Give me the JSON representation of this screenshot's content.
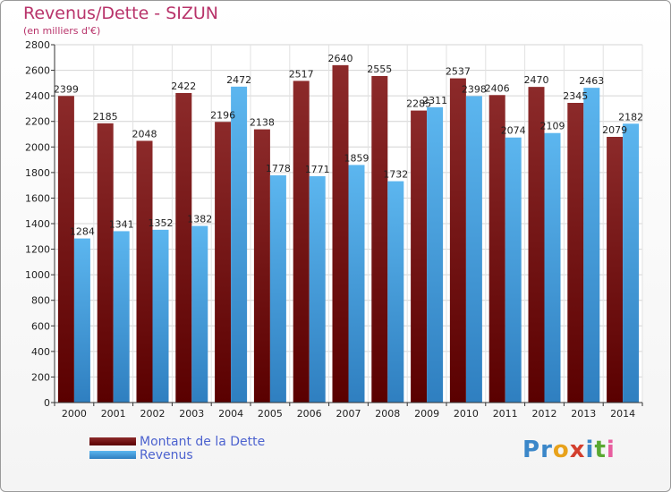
{
  "title": "Revenus/Dette - SIZUN",
  "subtitle": "(en milliers d'€)",
  "legend": {
    "dette": "Montant de la Dette",
    "revenus": "Revenus"
  },
  "logo": {
    "text": "Proxiti",
    "colors": [
      "#3b87c9",
      "#3b87c9",
      "#e8a21b",
      "#d33f2e",
      "#3b87c9",
      "#5aa832",
      "#e85d9f"
    ]
  },
  "colors": {
    "dette": "#7a1414",
    "revenus": "#4aa6e6",
    "title": "#b8336a",
    "legend_text": "#4c62cf"
  },
  "chart_data": {
    "type": "bar",
    "categories": [
      "2000",
      "2001",
      "2002",
      "2003",
      "2004",
      "2005",
      "2006",
      "2007",
      "2008",
      "2009",
      "2010",
      "2011",
      "2012",
      "2013",
      "2014"
    ],
    "series": [
      {
        "name": "Montant de la Dette",
        "values": [
          2399,
          2185,
          2048,
          2422,
          2196,
          2138,
          2517,
          2640,
          2555,
          2285,
          2537,
          2406,
          2470,
          2345,
          2079
        ]
      },
      {
        "name": "Revenus",
        "values": [
          1284,
          1341,
          1352,
          1382,
          2472,
          1778,
          1771,
          1859,
          1732,
          2311,
          2398,
          2074,
          2109,
          2463,
          2182
        ]
      }
    ],
    "ylim": [
      0,
      2800
    ],
    "yticks": [
      0,
      200,
      400,
      600,
      800,
      1000,
      1200,
      1400,
      1600,
      1800,
      2000,
      2200,
      2400,
      2600,
      2800
    ],
    "grid": true,
    "legend_position": "bottom-left"
  }
}
